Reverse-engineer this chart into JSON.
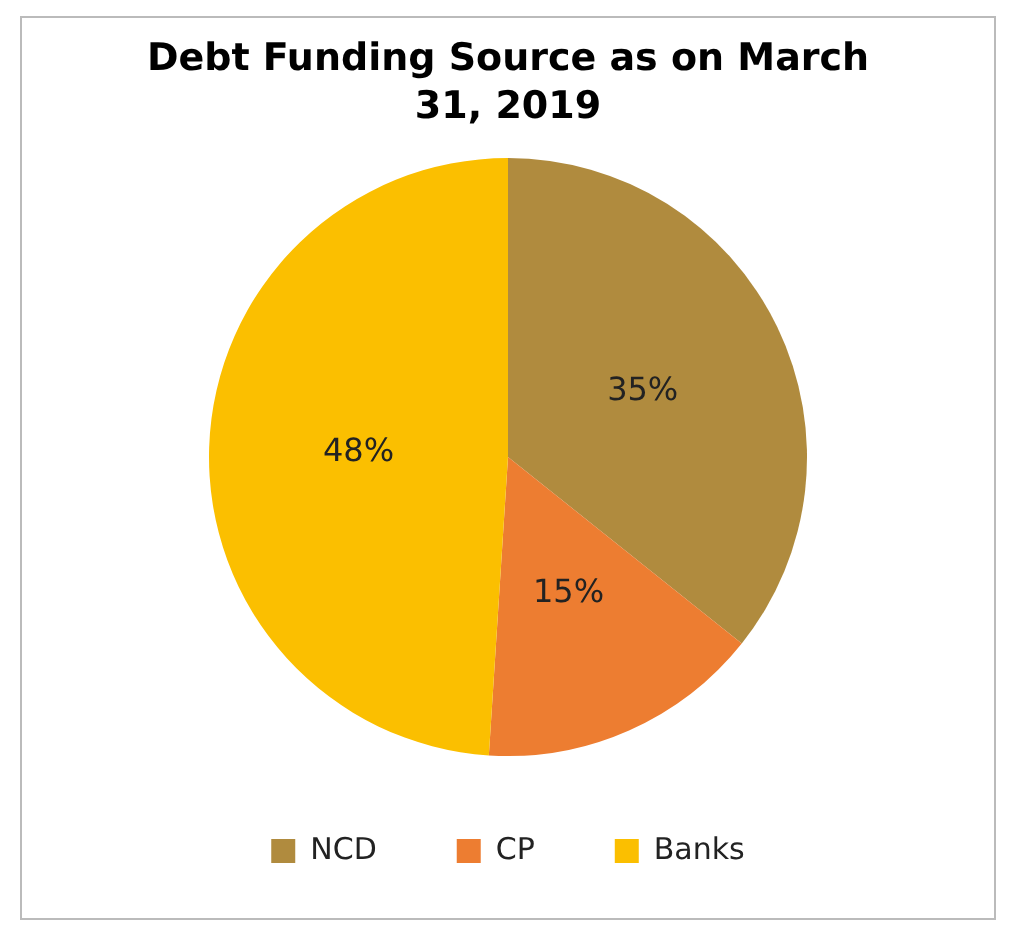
{
  "chart_data": {
    "type": "pie",
    "title": "Debt Funding Source as on March 31, 2019",
    "categories": [
      "NCD",
      "CP",
      "Banks"
    ],
    "values": [
      35,
      15,
      48
    ],
    "colors": [
      "#b08b3e",
      "#ed7d31",
      "#fbbf00"
    ],
    "value_labels": [
      "35%",
      "15%",
      "48%"
    ],
    "legend": "bottom"
  }
}
